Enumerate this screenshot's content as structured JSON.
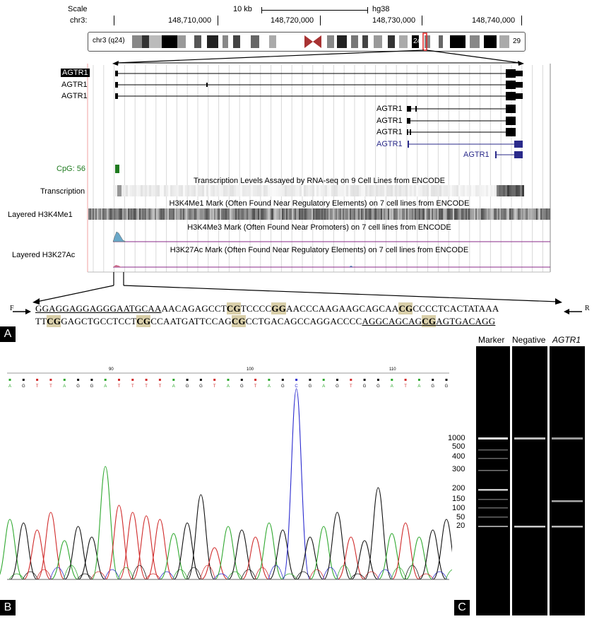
{
  "panelA": {
    "tag": "A",
    "scale_label": "Scale",
    "scale_value": "10 kb",
    "assembly": "hg38",
    "chrom_label": "chr3:",
    "coords": [
      "148,710,000",
      "148,720,000",
      "148,730,000",
      "148,740,000"
    ],
    "ideogram_label": "chr3 (q24)",
    "band_left": "24",
    "band_right": "29",
    "genes": [
      {
        "label": "AGTR1",
        "highlight": true
      },
      {
        "label": "AGTR1",
        "highlight": false
      },
      {
        "label": "AGTR1",
        "highlight": false
      },
      {
        "label": "AGTR1",
        "highlight": false
      },
      {
        "label": "AGTR1",
        "highlight": false
      },
      {
        "label": "AGTR1",
        "highlight": false
      },
      {
        "label": "AGTR1",
        "highlight": false,
        "blue": true
      },
      {
        "label": "AGTR1",
        "highlight": false,
        "blue": true
      }
    ],
    "cpg_label": "CpG: 56",
    "track_transcription_title": "Transcription Levels Assayed by RNA-seq on 9 Cell Lines from ENCODE",
    "track_transcription_label": "Transcription",
    "track_h3k4me1_title": "H3K4Me1 Mark (Often Found Near Regulatory Elements) on 7 cell lines from ENCODE",
    "track_h3k4me1_label": "Layered H3K4Me1",
    "track_h3k4me3_title": "H3K4Me3 Mark (Often Found Near Promoters) on 7 cell lines from ENCODE",
    "track_h3k27ac_title": "H3K27Ac Mark (Often Found Near Regulatory Elements) on 7 cell lines from ENCODE",
    "track_h3k27ac_label": "Layered H3K27Ac",
    "primer_f": "F",
    "primer_r": "R",
    "seq_line1": {
      "p1": "GGAGGAGGAGGGAATGCAA",
      "p2": "AACAGAGCCT",
      "cg1": "CG",
      "p3": "TCCCC",
      "cg2": "GG",
      "p4": "AACCCAAGAAGCAGCAA",
      "cg3": "CG",
      "p5": "CCCCTCACTATAAA"
    },
    "seq_line2": {
      "p1": "TT",
      "cg1": "CG",
      "p2": "GAGCTGCCTCCT",
      "cg2": "CG",
      "p3": "CCAATGATTCCAG",
      "cg3": "CG",
      "p4": "CCTGACAGCCAGGACCCC",
      "u1": "AGGCAGCAG",
      "cg4": "CG",
      "u2": "AGTGACAGG"
    }
  },
  "panelB": {
    "tag": "B",
    "bases": [
      "A",
      "G",
      "T",
      "T",
      "A",
      "G",
      "G",
      "A",
      "T",
      "T",
      "T",
      "T",
      "A",
      "G",
      "G",
      "T",
      "A",
      "G",
      "T",
      "A",
      "G",
      "C",
      "G",
      "A",
      "G",
      "T",
      "G",
      "G",
      "A",
      "T",
      "A",
      "G",
      "G"
    ],
    "position_marks": [
      "90",
      "100",
      "110"
    ]
  },
  "panelC": {
    "tag": "C",
    "lanes": [
      "Marker",
      "Negative",
      "AGTR1"
    ],
    "ladder_labels": [
      "1000",
      "500",
      "400",
      "300",
      "200",
      "150",
      "100",
      "50",
      "20"
    ]
  }
}
